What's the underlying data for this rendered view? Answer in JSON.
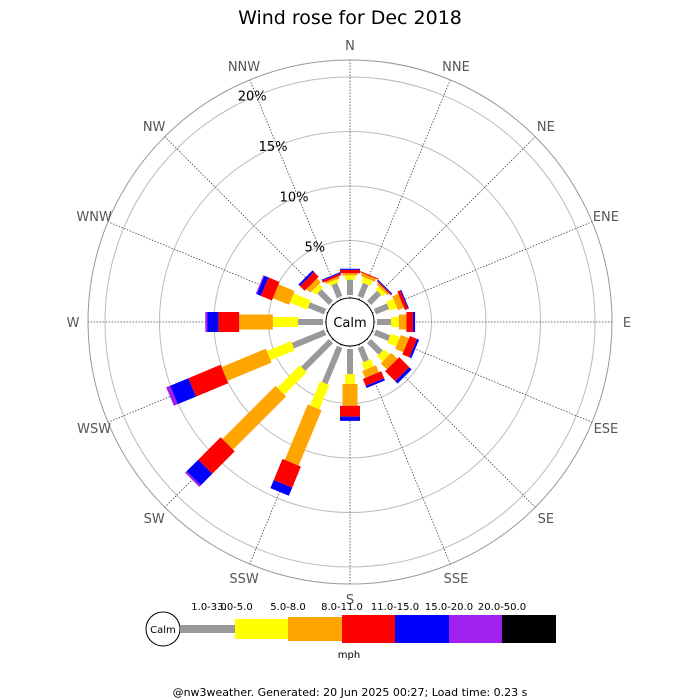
{
  "chart_data": {
    "type": "windrose",
    "title": "Wind rose for Dec 2018",
    "directions": [
      "N",
      "NNE",
      "NE",
      "ENE",
      "E",
      "ESE",
      "SE",
      "SSE",
      "S",
      "SSW",
      "SW",
      "WSW",
      "W",
      "WNW",
      "NW",
      "NNW"
    ],
    "ring_labels": [
      "5%",
      "10%",
      "15%",
      "20%"
    ],
    "rings_percent": [
      5,
      10,
      15,
      20
    ],
    "calm_label": "Calm",
    "unit": "mph",
    "speed_bins": [
      {
        "label": "1.0-3.0",
        "color": "#999999"
      },
      {
        "label": "3.0-5.0",
        "color": "#ffff00"
      },
      {
        "label": "5.0-8.0",
        "color": "#ffa500"
      },
      {
        "label": "8.0-11.0",
        "color": "#ff0000"
      },
      {
        "label": "11.0-15.0",
        "color": "#0000ff"
      },
      {
        "label": "15.0-20.0",
        "color": "#a020f0"
      },
      {
        "label": "20.0-50.0",
        "color": "#000000"
      }
    ],
    "series_cumulative_percent": [
      {
        "dir": "N",
        "values": [
          1.4,
          1.8,
          2.0,
          2.3,
          2.4,
          2.4,
          2.4
        ]
      },
      {
        "dir": "NNE",
        "values": [
          1.3,
          1.8,
          2.1,
          2.2,
          2.2,
          2.2,
          2.2
        ]
      },
      {
        "dir": "NE",
        "values": [
          1.3,
          1.7,
          1.9,
          2.0,
          2.1,
          2.1,
          2.1
        ]
      },
      {
        "dir": "ENE",
        "values": [
          1.3,
          2.0,
          2.6,
          2.9,
          3.0,
          3.0,
          3.0
        ]
      },
      {
        "dir": "E",
        "values": [
          1.3,
          2.0,
          2.7,
          3.3,
          3.5,
          3.5,
          3.5
        ]
      },
      {
        "dir": "ESE",
        "values": [
          1.4,
          2.3,
          3.1,
          3.8,
          4.0,
          4.0,
          4.0
        ]
      },
      {
        "dir": "SE",
        "values": [
          1.5,
          2.2,
          3.0,
          4.3,
          4.6,
          4.6,
          4.6
        ]
      },
      {
        "dir": "SSE",
        "values": [
          1.4,
          2.1,
          2.8,
          3.5,
          3.7,
          3.7,
          3.7
        ]
      },
      {
        "dir": "S",
        "values": [
          2.3,
          3.2,
          5.2,
          6.2,
          6.6,
          6.6,
          6.6
        ]
      },
      {
        "dir": "SSW",
        "values": [
          3.6,
          6.0,
          11.5,
          13.6,
          14.4,
          14.4,
          14.4
        ]
      },
      {
        "dir": "SW",
        "values": [
          3.6,
          6.5,
          13.4,
          16.3,
          17.8,
          18.0,
          18.0
        ]
      },
      {
        "dir": "WSW",
        "values": [
          3.2,
          5.6,
          10.0,
          13.2,
          15.0,
          15.4,
          15.4
        ]
      },
      {
        "dir": "W",
        "values": [
          2.3,
          4.6,
          7.7,
          9.6,
          10.6,
          10.8,
          10.8
        ]
      },
      {
        "dir": "WNW",
        "values": [
          1.6,
          3.3,
          4.9,
          6.0,
          6.4,
          6.5,
          6.5
        ]
      },
      {
        "dir": "NW",
        "values": [
          1.5,
          2.0,
          2.5,
          3.1,
          3.3,
          3.3,
          3.3
        ]
      },
      {
        "dir": "NNW",
        "values": [
          1.3,
          1.6,
          1.8,
          2.0,
          2.1,
          2.1,
          2.1
        ]
      }
    ]
  },
  "footer": "@nw3weather. Generated: 20 Jun 2025 00:27; Load time: 0.23 s"
}
